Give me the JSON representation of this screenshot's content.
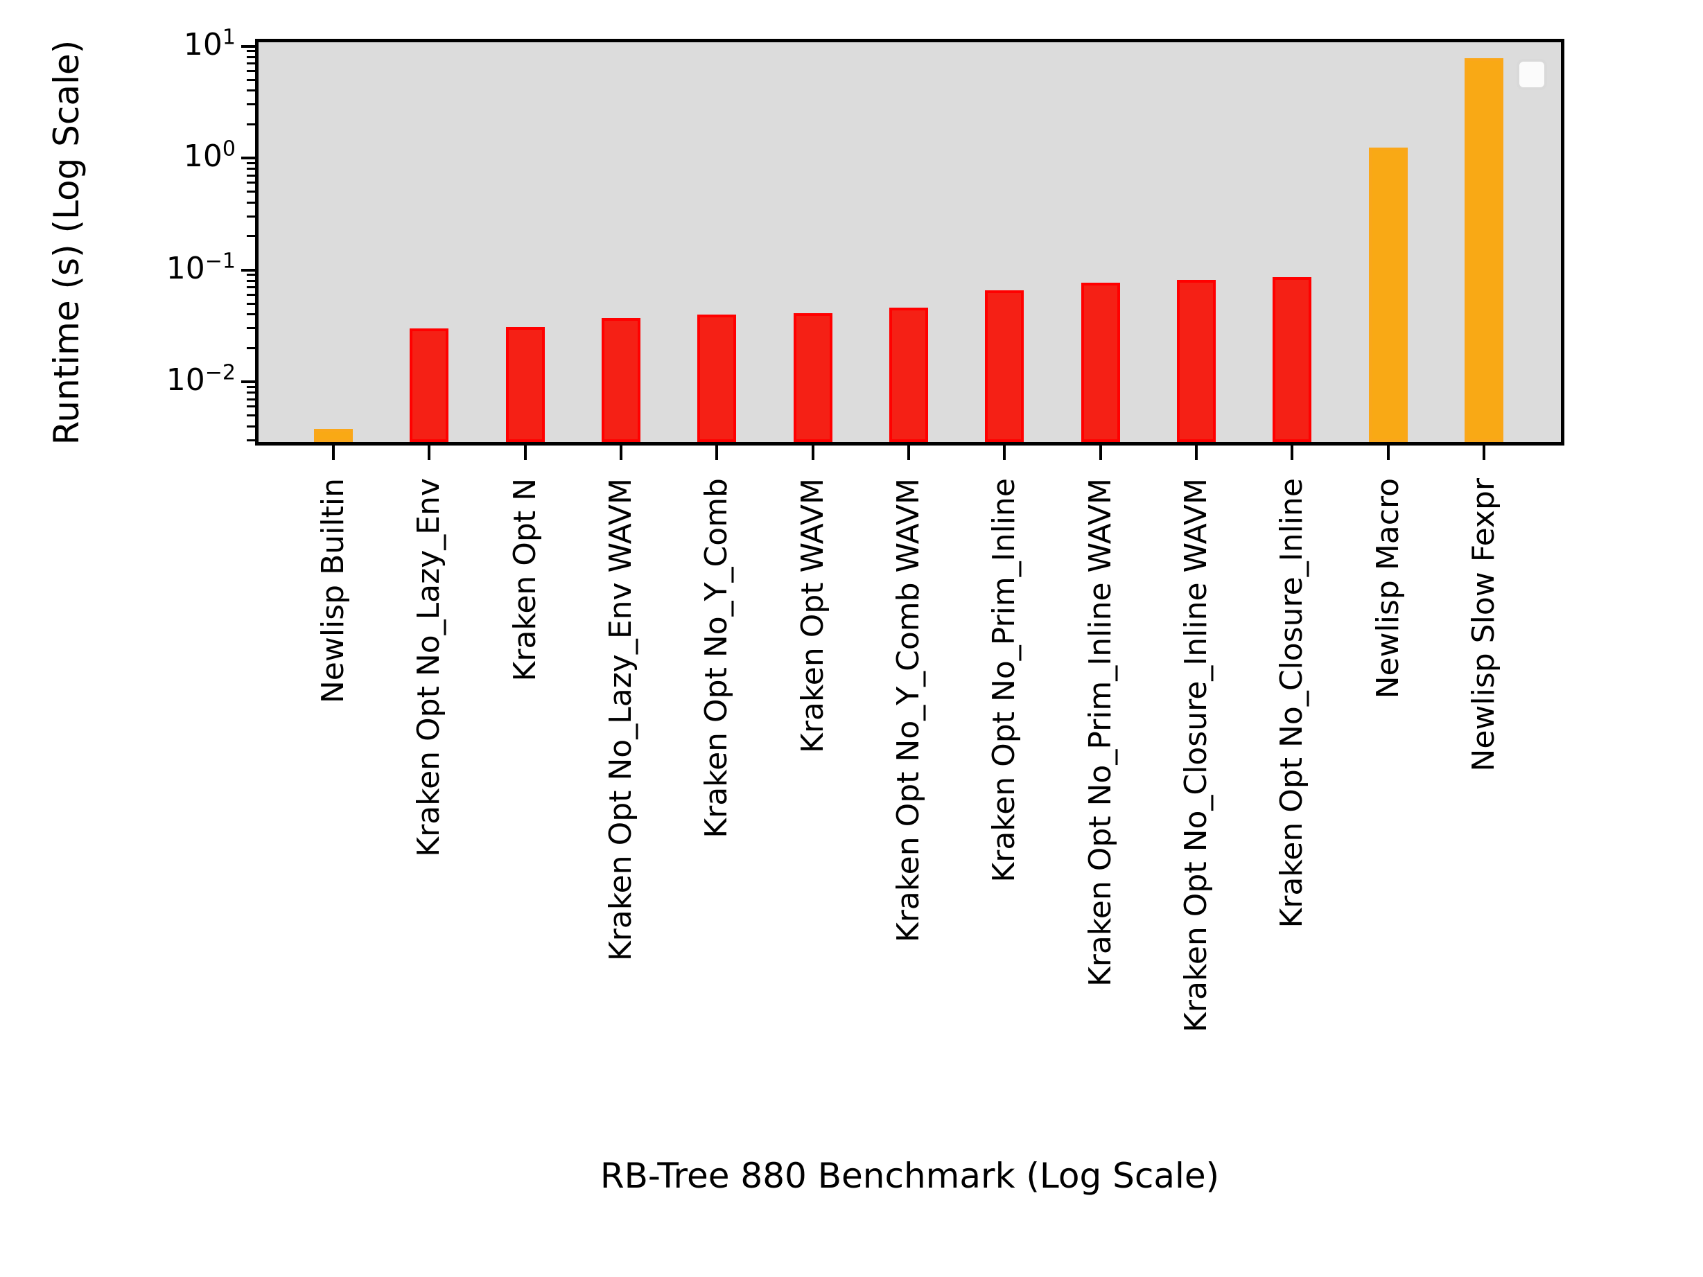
{
  "figure": {
    "background": "#ffffff",
    "plot_background": "#dcdcdc",
    "axis_color": "#000000"
  },
  "chart_data": {
    "type": "bar",
    "title": "",
    "xlabel": "RB-Tree 880 Benchmark (Log Scale)",
    "ylabel": "Runtime (s) (Log Scale)",
    "yscale": "log",
    "ylim": [
      0.0027,
      11.6
    ],
    "grid": false,
    "legend": {
      "visible": true,
      "position": "upper right",
      "entries": []
    },
    "categories": [
      "Newlisp Builtin",
      "Kraken Opt No_Lazy_Env",
      "Kraken Opt N",
      "Kraken Opt No_Lazy_Env WAVM",
      "Kraken Opt No_Y_Comb",
      "Kraken Opt WAVM",
      "Kraken Opt No_Y_Comb WAVM",
      "Kraken Opt No_Prim_Inline",
      "Kraken Opt No_Prim_Inline WAVM",
      "Kraken Opt No_Closure_Inline WAVM",
      "Kraken Opt No_Closure_Inline",
      "Newlisp Macro",
      "Newlisp Slow Fexpr"
    ],
    "values": [
      0.0038,
      0.03,
      0.031,
      0.037,
      0.04,
      0.041,
      0.046,
      0.066,
      0.077,
      0.081,
      0.086,
      1.24,
      7.8
    ],
    "bar_colors": [
      "orange",
      "red",
      "red",
      "red",
      "red",
      "red",
      "red",
      "red",
      "red",
      "red",
      "red",
      "orange",
      "orange"
    ],
    "palette": {
      "red_fill": "#f52015",
      "red_edge": "#ff0000",
      "orange_fill": "#f9a915",
      "orange_edge": "#faa71a"
    },
    "yticks": [
      {
        "value": 10,
        "base": "10",
        "exp": "1"
      },
      {
        "value": 1,
        "base": "10",
        "exp": "0"
      },
      {
        "value": 0.1,
        "base": "10",
        "exp": "−1"
      },
      {
        "value": 0.01,
        "base": "10",
        "exp": "−2"
      }
    ],
    "minor_tick_multiples": [
      2,
      3,
      4,
      5,
      6,
      7,
      8,
      9
    ]
  }
}
